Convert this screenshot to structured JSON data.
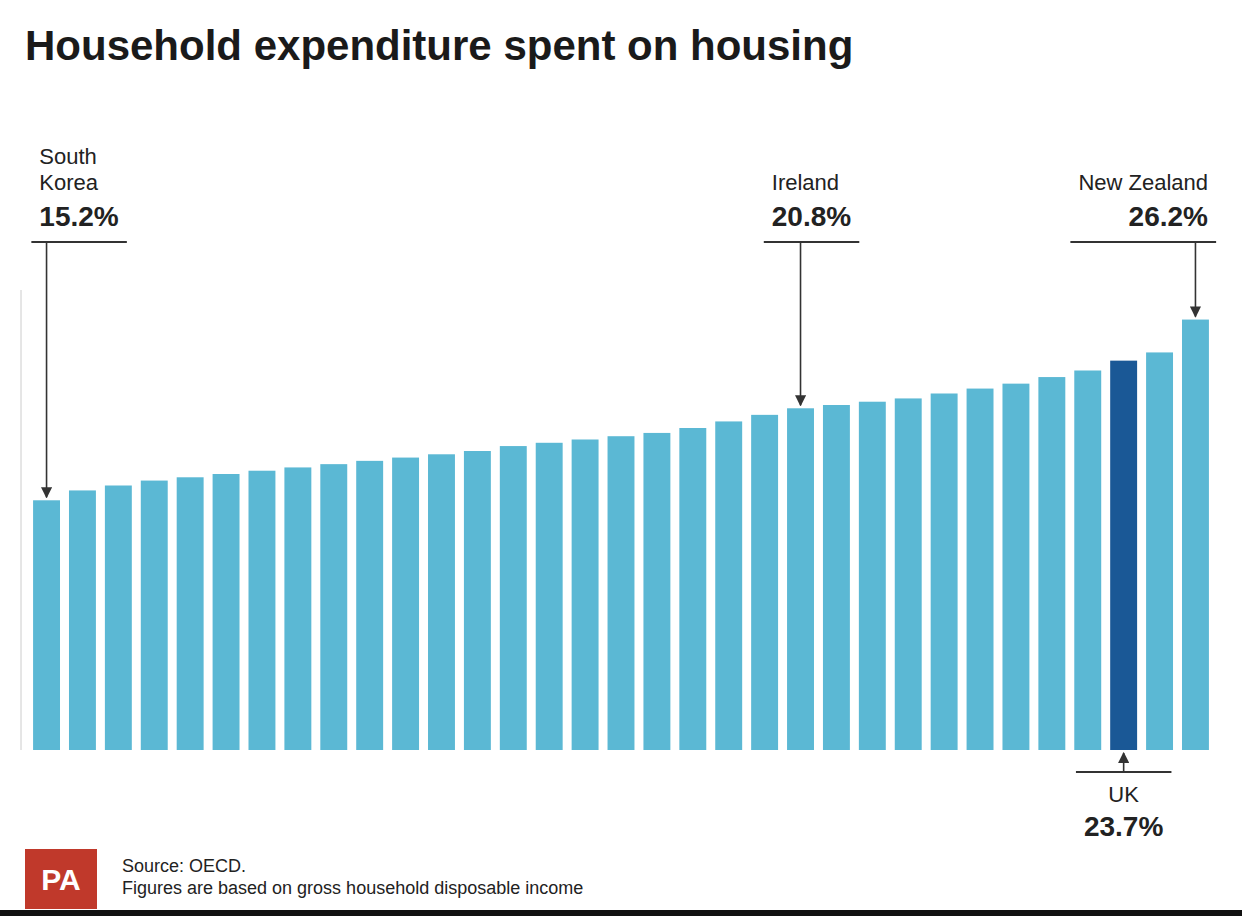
{
  "chart_data": {
    "type": "bar",
    "title": "Household expenditure spent on housing",
    "categories": [
      "South\nKorea",
      null,
      null,
      null,
      null,
      null,
      null,
      null,
      null,
      null,
      null,
      null,
      null,
      null,
      null,
      null,
      null,
      null,
      null,
      null,
      null,
      "Ireland",
      null,
      null,
      null,
      null,
      null,
      null,
      null,
      null,
      "UK",
      null,
      "New Zealand"
    ],
    "values": [
      15.2,
      15.8,
      16.1,
      16.4,
      16.6,
      16.8,
      17.0,
      17.2,
      17.4,
      17.6,
      17.8,
      18.0,
      18.2,
      18.5,
      18.7,
      18.9,
      19.1,
      19.3,
      19.6,
      20.0,
      20.4,
      20.8,
      21.0,
      21.2,
      21.4,
      21.7,
      22.0,
      22.3,
      22.7,
      23.1,
      23.7,
      24.2,
      26.2
    ],
    "value_labels": [
      "15.2%",
      null,
      null,
      null,
      null,
      null,
      null,
      null,
      null,
      null,
      null,
      null,
      null,
      null,
      null,
      null,
      null,
      null,
      null,
      null,
      null,
      "20.8%",
      null,
      null,
      null,
      null,
      null,
      null,
      null,
      null,
      "23.7%",
      null,
      "26.2%"
    ],
    "colors": [
      "#5BB8D4",
      "#5BB8D4",
      "#5BB8D4",
      "#5BB8D4",
      "#5BB8D4",
      "#5BB8D4",
      "#5BB8D4",
      "#5BB8D4",
      "#5BB8D4",
      "#5BB8D4",
      "#5BB8D4",
      "#5BB8D4",
      "#5BB8D4",
      "#5BB8D4",
      "#5BB8D4",
      "#5BB8D4",
      "#5BB8D4",
      "#5BB8D4",
      "#5BB8D4",
      "#5BB8D4",
      "#5BB8D4",
      "#5BB8D4",
      "#5BB8D4",
      "#5BB8D4",
      "#5BB8D4",
      "#5BB8D4",
      "#5BB8D4",
      "#5BB8D4",
      "#5BB8D4",
      "#5BB8D4",
      "#1A5896",
      "#5BB8D4",
      "#5BB8D4"
    ],
    "ylim": [
      0,
      28
    ],
    "tick_labels": false,
    "grid": false,
    "annotations": [
      {
        "text": "PA",
        "color": "#C0392B"
      },
      {
        "text": "Source: OECD."
      },
      {
        "text": "Figures are based on gross household disposable income"
      }
    ]
  }
}
